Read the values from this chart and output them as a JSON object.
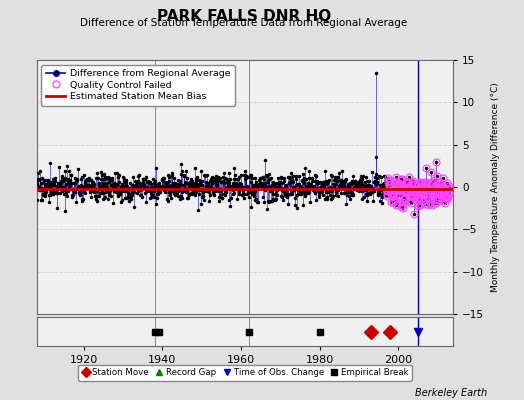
{
  "title": "PARK FALLS DNR HQ",
  "subtitle": "Difference of Station Temperature Data from Regional Average",
  "ylabel": "Monthly Temperature Anomaly Difference (°C)",
  "xlim": [
    1908,
    2014
  ],
  "ylim": [
    -15,
    15
  ],
  "yticks": [
    -15,
    -10,
    -5,
    0,
    5,
    10,
    15
  ],
  "xticks": [
    1920,
    1940,
    1960,
    1980,
    2000
  ],
  "background_color": "#e0e0e0",
  "plot_bg_color": "#f0f0f0",
  "grid_color": "#c8c8c8",
  "station_move_years": [
    1993,
    1998
  ],
  "empirical_break_years": [
    1938,
    1939,
    1962,
    1980
  ],
  "empirical_break_vline_years": [
    1938,
    1962
  ],
  "time_of_obs_change_years": [
    2005
  ],
  "record_gap_years": [],
  "bias_line_value": -0.2,
  "spike_year": 1994.25,
  "spike_value": 13.5,
  "qc_region_start": 1997,
  "qc_region_end": 2013,
  "data_line_color": "#0000cc",
  "data_marker_color": "#000000",
  "qc_marker_color": "#ff44ff",
  "bias_line_color": "#cc0000",
  "station_move_color": "#cc0000",
  "empirical_break_color": "#000000",
  "time_obs_color": "#0000cc",
  "record_gap_color": "#008800",
  "vline_color": "#888888",
  "watermark": "Berkeley Earth",
  "noise_std": 0.85,
  "random_seed": 17
}
